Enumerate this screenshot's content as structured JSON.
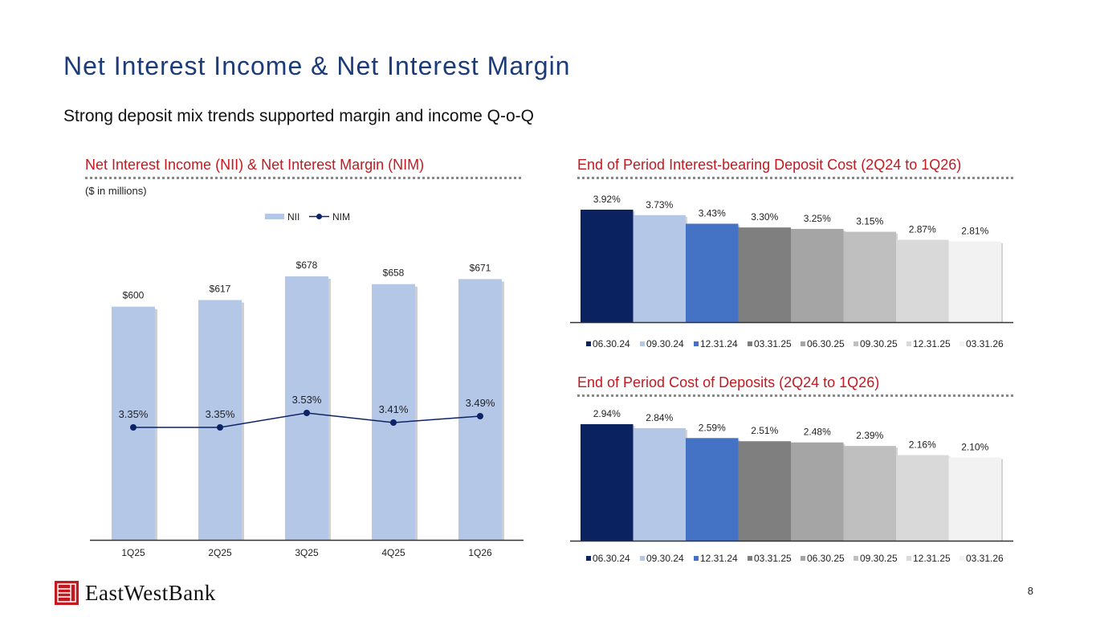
{
  "page": {
    "title": "Net Interest Income & Net Interest Margin",
    "subtitle": "Strong deposit mix trends supported margin and income Q-o-Q",
    "page_number": "8",
    "logo_text": "EastWestBank"
  },
  "colors": {
    "title": "#1b3b7a",
    "section_title": "#c4191f",
    "nii_bar": "#b4c7e7",
    "nim_line": "#0c2466",
    "deposit_series": [
      "#0b2260",
      "#b4c7e7",
      "#4472c4",
      "#7f7f7f",
      "#a5a5a5",
      "#bfbfbf",
      "#d9d9d9",
      "#f2f2f2"
    ]
  },
  "chart_data": [
    {
      "type": "bar",
      "title": "Net Interest Income (NII) & Net Interest Margin (NIM)",
      "units_note": "($ in millions)",
      "categories": [
        "1Q25",
        "2Q25",
        "3Q25",
        "4Q25",
        "1Q26"
      ],
      "series": [
        {
          "name": "NII",
          "type": "bar",
          "values": [
            600,
            617,
            678,
            658,
            671
          ],
          "labels": [
            "$600",
            "$617",
            "$678",
            "$658",
            "$671"
          ]
        },
        {
          "name": "NIM",
          "type": "line",
          "values": [
            3.35,
            3.35,
            3.53,
            3.41,
            3.49
          ],
          "labels": [
            "3.35%",
            "3.35%",
            "3.53%",
            "3.41%",
            "3.49%"
          ]
        }
      ],
      "legend": "top-center",
      "grid": false
    },
    {
      "type": "bar",
      "title": "End of Period Interest-bearing Deposit Cost (2Q24 to 1Q26)",
      "categories": [
        "06.30.24",
        "09.30.24",
        "12.31.24",
        "03.31.25",
        "06.30.25",
        "09.30.25",
        "12.31.25",
        "03.31.26"
      ],
      "values": [
        3.92,
        3.73,
        3.43,
        3.3,
        3.25,
        3.15,
        2.87,
        2.81
      ],
      "labels": [
        "3.92%",
        "3.73%",
        "3.43%",
        "3.30%",
        "3.25%",
        "3.15%",
        "2.87%",
        "2.81%"
      ],
      "legend": "bottom",
      "grid": false
    },
    {
      "type": "bar",
      "title": "End of Period Cost of Deposits (2Q24 to 1Q26)",
      "categories": [
        "06.30.24",
        "09.30.24",
        "12.31.24",
        "03.31.25",
        "06.30.25",
        "09.30.25",
        "12.31.25",
        "03.31.26"
      ],
      "values": [
        2.94,
        2.84,
        2.59,
        2.51,
        2.48,
        2.39,
        2.16,
        2.1
      ],
      "labels": [
        "2.94%",
        "2.84%",
        "2.59%",
        "2.51%",
        "2.48%",
        "2.39%",
        "2.16%",
        "2.10%"
      ],
      "legend": "bottom",
      "grid": false
    }
  ]
}
